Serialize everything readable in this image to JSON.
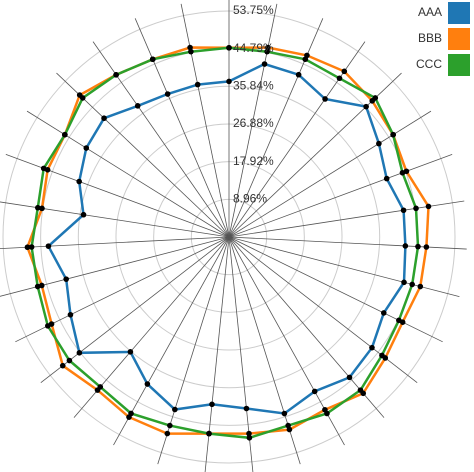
{
  "chart_data": {
    "type": "radar",
    "ylim": [
      0,
      53.75
    ],
    "yticks": [
      {
        "value": 8.96,
        "label": "8.96%"
      },
      {
        "value": 17.92,
        "label": "17.92%"
      },
      {
        "value": 26.88,
        "label": "26.88%"
      },
      {
        "value": 35.84,
        "label": "35.84%"
      },
      {
        "value": 44.8,
        "label": "44.79%"
      },
      {
        "value": 53.75,
        "label": "53.75%"
      }
    ],
    "grid": true,
    "legend": "top-right",
    "series": [
      {
        "name": "AAA",
        "color": "#1f77b4",
        "values": [
          37,
          42,
          42,
          40,
          45,
          42,
          40,
          42,
          42,
          43,
          41,
          43,
          44,
          42,
          44,
          41,
          40,
          43,
          40,
          36,
          45,
          42,
          40,
          43,
          35,
          38,
          40,
          41,
          38,
          37,
          37
        ]
      },
      {
        "name": "BBB",
        "color": "#ff7f0e",
        "values": [
          45,
          46,
          47,
          48,
          47,
          46,
          45,
          48,
          47,
          47,
          46,
          47,
          49,
          47,
          48,
          47,
          47,
          49,
          49,
          48,
          50,
          47,
          46,
          48,
          45,
          46,
          46,
          49,
          47,
          46,
          46
        ]
      },
      {
        "name": "CCC",
        "color": "#2ca02c",
        "values": [
          45,
          45,
          46,
          46,
          48,
          46,
          44,
          45,
          45,
          45,
          45,
          46,
          48,
          48,
          47,
          48,
          47,
          47,
          48,
          47,
          48,
          48,
          47,
          47,
          46,
          47,
          46,
          48,
          47,
          46,
          45
        ]
      }
    ]
  }
}
